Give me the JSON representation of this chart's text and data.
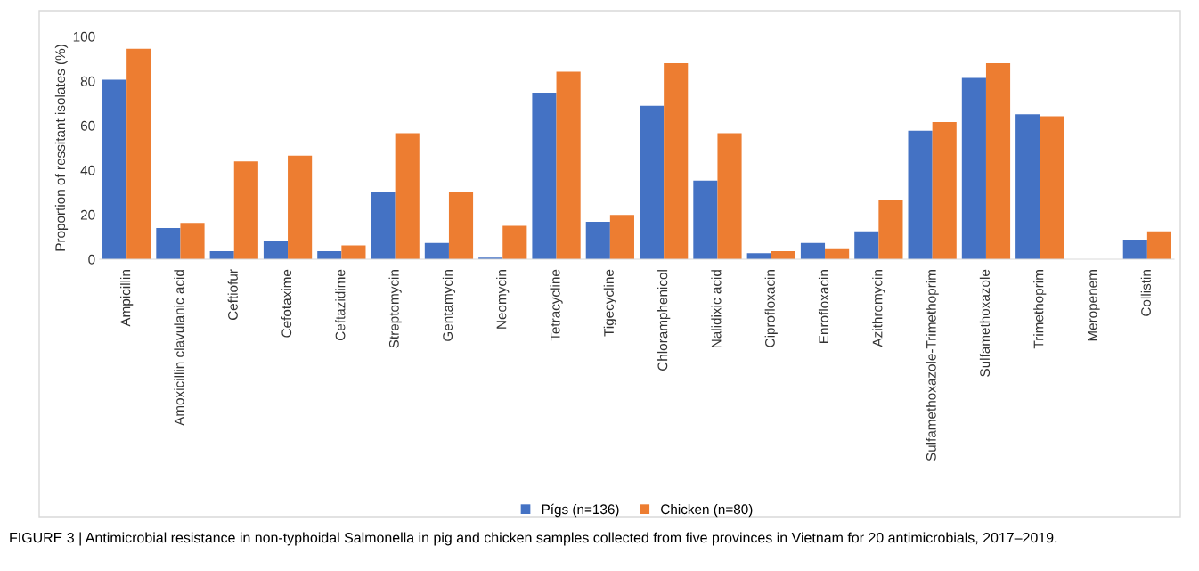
{
  "chart_data": {
    "type": "bar",
    "ylabel": "Proportion of ressitant isolates (%)",
    "categories": [
      "Ampicillin",
      "Amoxicillin clavulanic acid",
      "Ceftiofur",
      "Cefotaxime",
      "Ceftazidime",
      "Streptomycin",
      "Gentamycin",
      "Neomycin",
      "Tetracycline",
      "Tigecycline",
      "Chloramphenicol",
      "Nalidixic acid",
      "Ciprofloxacin",
      "Enrofloxacin",
      "Azithromycin",
      "Sulfamethoxazole-Trimethoprim",
      "Sulfamethoxazole",
      "Trimethoprim",
      "Meropenem",
      "Collistin"
    ],
    "series": [
      {
        "name": "Pígs (n=136)",
        "color": "#4472c4",
        "values": [
          80.6,
          14.0,
          3.6,
          8.1,
          3.6,
          30.2,
          7.3,
          0.7,
          74.8,
          16.8,
          68.9,
          35.3,
          2.7,
          7.3,
          12.5,
          57.7,
          81.4,
          65.1,
          0,
          8.8
        ]
      },
      {
        "name": "Chicken (n=80)",
        "color": "#ed7d31",
        "values": [
          94.5,
          16.3,
          43.9,
          46.5,
          6.2,
          56.6,
          30.1,
          15.0,
          84.2,
          19.9,
          88.0,
          56.6,
          3.6,
          4.9,
          26.4,
          61.6,
          88.0,
          64.2,
          0,
          12.5
        ]
      }
    ],
    "ylim": [
      0,
      100
    ],
    "yticks": [
      0,
      20,
      40,
      60,
      80,
      100
    ],
    "grid": false,
    "legend": "bottom",
    "annotations": [
      "FIGURE 3 | Antimicrobial resistance in non-typhoidal Salmonella in pig and chicken samples collected from five provinces in Vietnam for 20 antimicrobials, 2017–2019."
    ]
  }
}
